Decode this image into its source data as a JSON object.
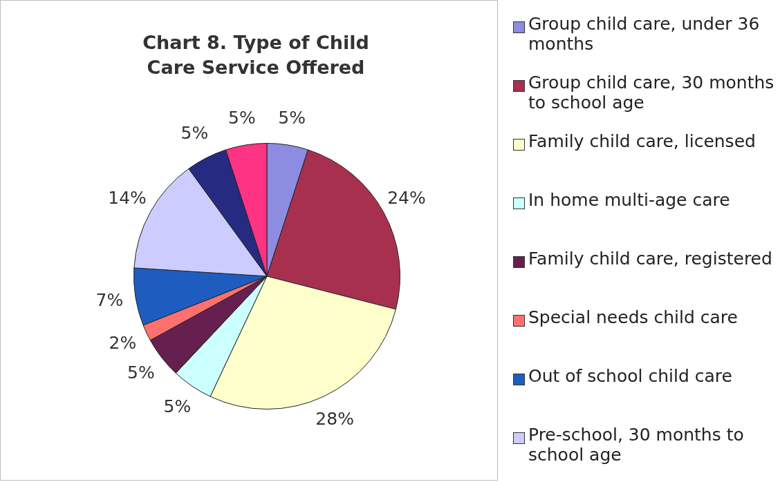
{
  "chart_data": {
    "type": "pie",
    "title": "Chart 8.  Type of Child Care Service Offered",
    "categories": [
      "Group child care, under 36 months",
      "Group child care, 30 months to school age",
      "Family child care, licensed",
      "In home multi-age care",
      "Family child care, registered",
      "Special needs child care",
      "Out of school child care",
      "Pre-school, 30 months to school age",
      null,
      null
    ],
    "values": [
      5,
      24,
      28,
      5,
      5,
      2,
      7,
      14,
      5,
      5
    ],
    "colors": [
      "#8c8ce0",
      "#a8304f",
      "#ffffcc",
      "#ccffff",
      "#662050",
      "#ff7070",
      "#1f5cc0",
      "#ccccff",
      "#262a80",
      "#ff3383"
    ],
    "value_labels": [
      "5%",
      "24%",
      "28%",
      "5%",
      "5%",
      "2%",
      "7%",
      "14%",
      "5%",
      "5%"
    ],
    "legend": "right"
  }
}
